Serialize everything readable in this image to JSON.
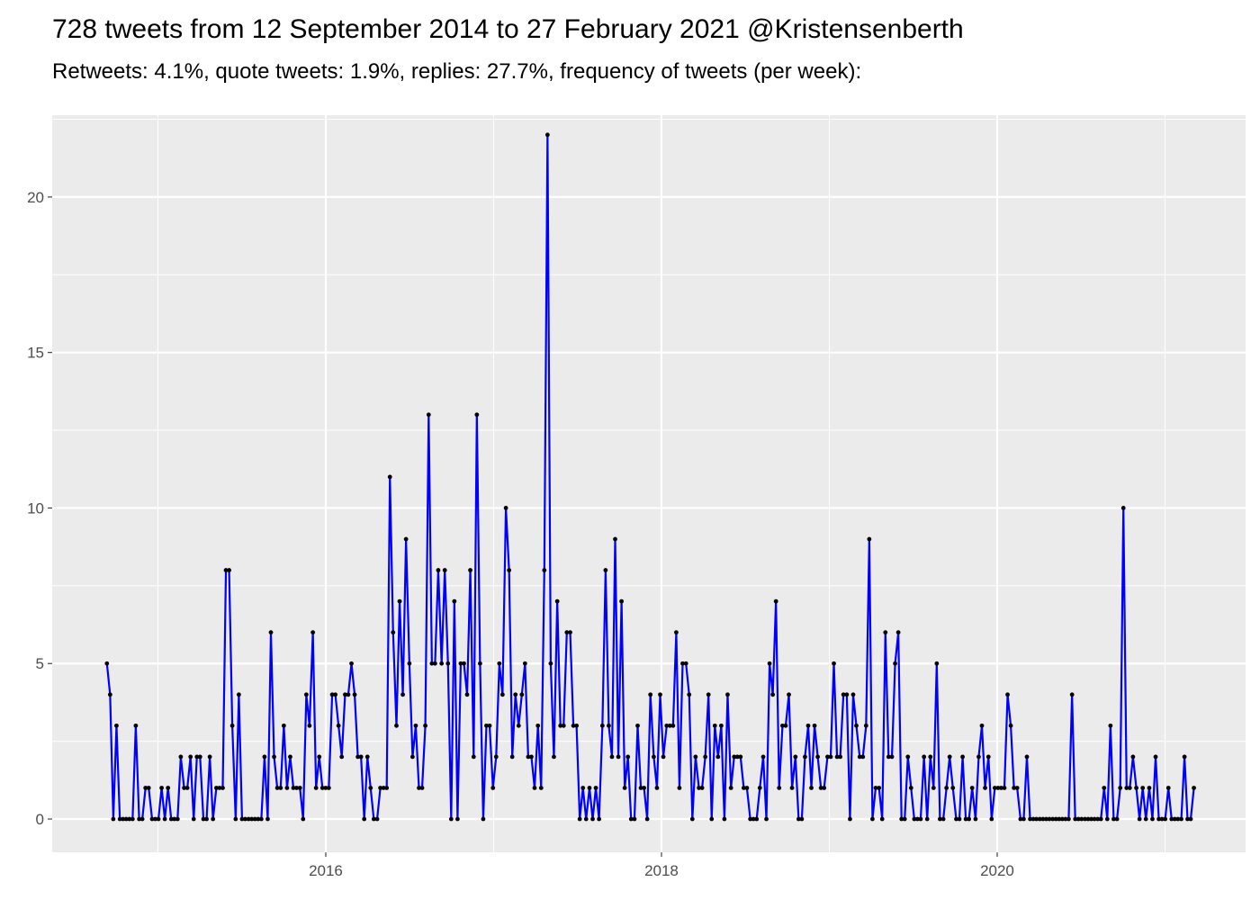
{
  "chart_data": {
    "type": "line",
    "title": "728 tweets from 12 September 2014 to 27 February 2021 @Kristensenberth",
    "subtitle": "Retweets: 4.1%, quote tweets: 1.9%, replies: 27.7%, frequency of tweets (per week):",
    "x": [
      2014.696,
      2014.715,
      2014.734,
      2014.753,
      2014.773,
      2014.792,
      2014.811,
      2014.83,
      2014.849,
      2014.868,
      2014.888,
      2014.907,
      2014.926,
      2014.945,
      2014.965,
      2014.984,
      2015.003,
      2015.022,
      2015.041,
      2015.06,
      2015.079,
      2015.098,
      2015.117,
      2015.136,
      2015.156,
      2015.175,
      2015.194,
      2015.213,
      2015.232,
      2015.251,
      2015.271,
      2015.29,
      2015.309,
      2015.328,
      2015.348,
      2015.367,
      2015.386,
      2015.405,
      2015.424,
      2015.443,
      2015.463,
      2015.482,
      2015.501,
      2015.52,
      2015.54,
      2015.559,
      2015.578,
      2015.597,
      2015.616,
      2015.635,
      2015.654,
      2015.673,
      2015.692,
      2015.711,
      2015.731,
      2015.75,
      2015.769,
      2015.788,
      2015.807,
      2015.826,
      2015.846,
      2015.865,
      2015.884,
      2015.903,
      2015.923,
      2015.942,
      2015.961,
      2015.98,
      2015.999,
      2016.018,
      2016.038,
      2016.057,
      2016.076,
      2016.095,
      2016.115,
      2016.134,
      2016.153,
      2016.172,
      2016.191,
      2016.21,
      2016.229,
      2016.248,
      2016.267,
      2016.286,
      2016.306,
      2016.325,
      2016.344,
      2016.363,
      2016.382,
      2016.401,
      2016.421,
      2016.44,
      2016.459,
      2016.478,
      2016.498,
      2016.517,
      2016.536,
      2016.555,
      2016.574,
      2016.593,
      2016.613,
      2016.632,
      2016.651,
      2016.67,
      2016.69,
      2016.709,
      2016.728,
      2016.747,
      2016.766,
      2016.785,
      2016.804,
      2016.823,
      2016.842,
      2016.861,
      2016.881,
      2016.9,
      2016.919,
      2016.938,
      2016.957,
      2016.976,
      2016.996,
      2017.015,
      2017.034,
      2017.053,
      2017.073,
      2017.092,
      2017.111,
      2017.13,
      2017.149,
      2017.168,
      2017.187,
      2017.206,
      2017.225,
      2017.244,
      2017.264,
      2017.283,
      2017.302,
      2017.321,
      2017.34,
      2017.359,
      2017.379,
      2017.398,
      2017.417,
      2017.436,
      2017.456,
      2017.475,
      2017.494,
      2017.513,
      2017.532,
      2017.551,
      2017.571,
      2017.59,
      2017.609,
      2017.628,
      2017.648,
      2017.667,
      2017.686,
      2017.705,
      2017.724,
      2017.743,
      2017.762,
      2017.781,
      2017.8,
      2017.819,
      2017.839,
      2017.858,
      2017.877,
      2017.896,
      2017.915,
      2017.934,
      2017.954,
      2017.973,
      2017.992,
      2018.011,
      2018.031,
      2018.05,
      2018.069,
      2018.088,
      2018.107,
      2018.126,
      2018.146,
      2018.165,
      2018.184,
      2018.203,
      2018.223,
      2018.242,
      2018.261,
      2018.28,
      2018.299,
      2018.318,
      2018.337,
      2018.356,
      2018.375,
      2018.394,
      2018.414,
      2018.433,
      2018.452,
      2018.471,
      2018.49,
      2018.509,
      2018.529,
      2018.548,
      2018.567,
      2018.586,
      2018.606,
      2018.625,
      2018.644,
      2018.663,
      2018.682,
      2018.701,
      2018.721,
      2018.74,
      2018.759,
      2018.778,
      2018.798,
      2018.817,
      2018.836,
      2018.855,
      2018.874,
      2018.893,
      2018.912,
      2018.931,
      2018.95,
      2018.969,
      2018.989,
      2019.008,
      2019.027,
      2019.046,
      2019.065,
      2019.084,
      2019.104,
      2019.123,
      2019.142,
      2019.161,
      2019.181,
      2019.2,
      2019.219,
      2019.238,
      2019.257,
      2019.276,
      2019.296,
      2019.315,
      2019.334,
      2019.353,
      2019.373,
      2019.392,
      2019.411,
      2019.43,
      2019.449,
      2019.468,
      2019.487,
      2019.506,
      2019.525,
      2019.544,
      2019.564,
      2019.583,
      2019.602,
      2019.621,
      2019.64,
      2019.659,
      2019.679,
      2019.698,
      2019.717,
      2019.736,
      2019.756,
      2019.775,
      2019.794,
      2019.813,
      2019.832,
      2019.851,
      2019.871,
      2019.89,
      2019.909,
      2019.928,
      2019.948,
      2019.967,
      2019.986,
      2020.005,
      2020.024,
      2020.043,
      2020.062,
      2020.081,
      2020.1,
      2020.119,
      2020.139,
      2020.158,
      2020.177,
      2020.196,
      2020.215,
      2020.234,
      2020.254,
      2020.273,
      2020.292,
      2020.311,
      2020.331,
      2020.35,
      2020.369,
      2020.388,
      2020.407,
      2020.426,
      2020.446,
      2020.465,
      2020.484,
      2020.503,
      2020.523,
      2020.542,
      2020.561,
      2020.58,
      2020.599,
      2020.618,
      2020.637,
      2020.656,
      2020.675,
      2020.694,
      2020.714,
      2020.733,
      2020.752,
      2020.771,
      2020.79,
      2020.809,
      2020.829,
      2020.848,
      2020.867,
      2020.886,
      2020.906,
      2020.925,
      2020.944,
      2020.963,
      2020.982,
      2021.001,
      2021.02,
      2021.039,
      2021.058,
      2021.077,
      2021.097,
      2021.116,
      2021.134,
      2021.153,
      2021.172
    ],
    "series": [
      {
        "color": "#0000ff",
        "values": [
          5,
          4,
          0,
          3,
          0,
          0,
          0,
          0,
          0,
          3,
          0,
          0,
          1,
          1,
          0,
          0,
          0,
          1,
          0,
          1,
          0,
          0,
          0,
          2,
          1,
          1,
          2,
          0,
          2,
          2,
          0,
          0,
          2,
          0,
          1,
          1,
          1,
          8,
          8,
          3,
          0,
          4,
          0,
          0,
          0,
          0,
          0,
          0,
          0,
          2,
          0,
          6,
          2,
          1,
          1,
          3,
          1,
          2,
          1,
          1,
          1,
          0,
          4,
          3,
          6,
          1,
          2,
          1,
          1,
          1,
          4,
          4,
          3,
          2,
          4,
          4,
          5,
          4,
          2,
          2,
          0,
          2,
          1,
          0,
          0,
          1,
          1,
          1,
          11,
          6,
          3,
          7,
          4,
          9,
          5,
          2,
          3,
          1,
          1,
          3,
          13,
          5,
          5,
          8,
          5,
          8,
          5,
          0,
          7,
          0,
          5,
          5,
          4,
          8,
          2,
          13,
          5,
          0,
          3,
          3,
          1,
          2,
          5,
          4,
          10,
          8,
          2,
          4,
          3,
          4,
          5,
          2,
          2,
          1,
          3,
          1,
          8,
          22,
          5,
          2,
          7,
          3,
          3,
          6,
          6,
          3,
          3,
          0,
          1,
          0,
          1,
          0,
          1,
          0,
          3,
          8,
          3,
          2,
          9,
          2,
          7,
          1,
          2,
          0,
          0,
          3,
          1,
          1,
          0,
          4,
          2,
          1,
          4,
          2,
          3,
          3,
          3,
          6,
          1,
          5,
          5,
          4,
          0,
          2,
          1,
          1,
          2,
          4,
          0,
          3,
          2,
          3,
          0,
          4,
          1,
          2,
          2,
          2,
          1,
          1,
          0,
          0,
          0,
          1,
          2,
          0,
          5,
          4,
          7,
          1,
          3,
          3,
          4,
          1,
          2,
          0,
          0,
          2,
          3,
          1,
          3,
          2,
          1,
          1,
          2,
          2,
          5,
          2,
          2,
          4,
          4,
          0,
          4,
          3,
          2,
          2,
          3,
          9,
          0,
          1,
          1,
          0,
          6,
          2,
          2,
          5,
          6,
          0,
          0,
          2,
          1,
          0,
          0,
          0,
          2,
          0,
          2,
          1,
          5,
          0,
          0,
          1,
          2,
          1,
          0,
          0,
          2,
          0,
          0,
          1,
          0,
          2,
          3,
          1,
          2,
          0,
          1,
          1,
          1,
          1,
          4,
          3,
          1,
          1,
          0,
          0,
          2,
          0,
          0,
          0,
          0,
          0,
          0,
          0,
          0,
          0,
          0,
          0,
          0,
          0,
          4,
          0,
          0,
          0,
          0,
          0,
          0,
          0,
          0,
          0,
          1,
          0,
          3,
          0,
          0,
          1,
          10,
          1,
          1,
          2,
          1,
          0,
          1,
          0,
          1,
          0,
          2,
          0,
          0,
          0,
          1,
          0,
          0,
          0,
          0,
          2,
          0,
          0,
          1
        ]
      }
    ],
    "point_color": "#000000",
    "xlim": [
      2014.37,
      2021.48
    ],
    "ylim": [
      -1.07,
      22.63
    ],
    "xticks": [
      2016,
      2018,
      2020
    ],
    "yticks": [
      0,
      5,
      10,
      15,
      20
    ],
    "grid": true
  }
}
